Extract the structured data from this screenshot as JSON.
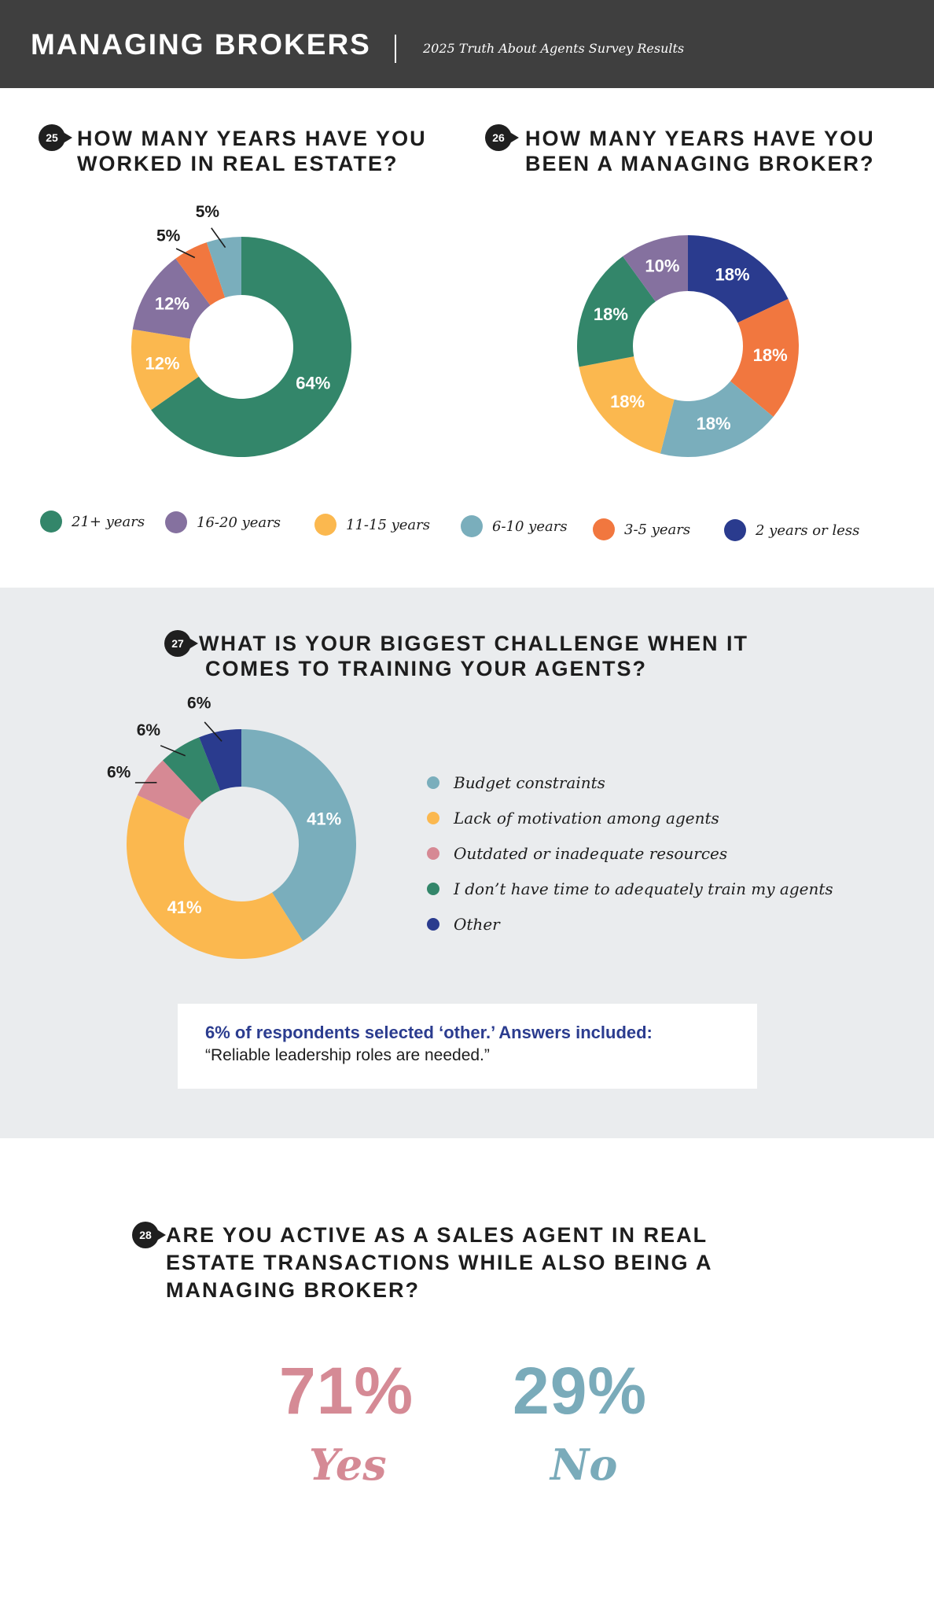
{
  "header": {
    "title": "MANAGING BROKERS",
    "subtitle": "2025 Truth About Agents Survey Results"
  },
  "colors": {
    "green": "#33866a",
    "purple": "#85719f",
    "yellow": "#fbb84f",
    "teal": "#7aaebc",
    "orange": "#f1773f",
    "navy": "#2a3b8e",
    "pink": "#d68994",
    "yes": "#d58a95",
    "no": "#7aabba"
  },
  "q25": {
    "number": "25",
    "title_line1": "HOW MANY YEARS HAVE YOU",
    "title_line2": "WORKED IN REAL ESTATE?"
  },
  "q26": {
    "number": "26",
    "title_line1": "HOW MANY YEARS HAVE YOU",
    "title_line2": "BEEN A MANAGING BROKER?"
  },
  "legend_years": [
    {
      "label": "21+ years",
      "color": "#33866a"
    },
    {
      "label": "16-20 years",
      "color": "#85719f"
    },
    {
      "label": "11-15 years",
      "color": "#fbb84f"
    },
    {
      "label": "6-10 years",
      "color": "#7aaebc"
    },
    {
      "label": "3-5 years",
      "color": "#f1773f"
    },
    {
      "label": "2 years or less",
      "color": "#2a3b8e"
    }
  ],
  "q27": {
    "number": "27",
    "title_line1": "WHAT IS YOUR BIGGEST CHALLENGE WHEN IT",
    "title_line2": "COMES TO TRAINING YOUR AGENTS?",
    "legend": [
      {
        "label": "Budget constraints",
        "color": "#7aaebc"
      },
      {
        "label": "Lack of motivation among agents",
        "color": "#fbb84f"
      },
      {
        "label": "Outdated or inadequate resources",
        "color": "#d68994"
      },
      {
        "label": "I don’t have time to adequately train my agents",
        "color": "#33866a"
      },
      {
        "label": "Other",
        "color": "#2a3b8e"
      }
    ],
    "note_title": "6% of respondents selected ‘other.’ Answers included:",
    "note_quote": "“Reliable leadership roles are needed.”"
  },
  "q28": {
    "number": "28",
    "title_line1": "ARE YOU ACTIVE AS A SALES AGENT IN REAL",
    "title_line2": "ESTATE TRANSACTIONS WHILE ALSO BEING A",
    "title_line3": "MANAGING BROKER?",
    "yes_pct": "71%",
    "yes_label": "Yes",
    "no_pct": "29%",
    "no_label": "No"
  },
  "chart_data": [
    {
      "type": "pie",
      "title": "HOW MANY YEARS HAVE YOU WORKED IN REAL ESTATE?",
      "categories": [
        "21+ years",
        "11-15 years",
        "16-20 years",
        "3-5 years",
        "6-10 years"
      ],
      "values": [
        64,
        12,
        12,
        5,
        5
      ],
      "labels": [
        "64%",
        "12%",
        "12%",
        "5%",
        "5%"
      ],
      "colors": [
        "#33866a",
        "#fbb84f",
        "#85719f",
        "#f1773f",
        "#7aaebc"
      ],
      "label_position": [
        "inside",
        "inside",
        "inside",
        "outside",
        "outside"
      ]
    },
    {
      "type": "pie",
      "title": "HOW MANY YEARS HAVE YOU BEEN A MANAGING BROKER?",
      "categories": [
        "2 years or less",
        "3-5 years",
        "6-10 years",
        "11-15 years",
        "21+ years",
        "16-20 years"
      ],
      "values": [
        18,
        18,
        18,
        18,
        18,
        10
      ],
      "labels": [
        "18%",
        "18%",
        "18%",
        "18%",
        "18%",
        "10%"
      ],
      "colors": [
        "#2a3b8e",
        "#f1773f",
        "#7aaebc",
        "#fbb84f",
        "#33866a",
        "#85719f"
      ],
      "label_position": [
        "inside",
        "inside",
        "inside",
        "inside",
        "inside",
        "inside"
      ]
    },
    {
      "type": "pie",
      "title": "WHAT IS YOUR BIGGEST CHALLENGE WHEN IT COMES TO TRAINING YOUR AGENTS?",
      "categories": [
        "Budget constraints",
        "Lack of motivation among agents",
        "Outdated or inadequate resources",
        "I don’t have time to adequately train my agents",
        "Other"
      ],
      "values": [
        41,
        41,
        6,
        6,
        6
      ],
      "labels": [
        "41%",
        "41%",
        "6%",
        "6%",
        "6%"
      ],
      "colors": [
        "#7aaebc",
        "#fbb84f",
        "#d68994",
        "#33866a",
        "#2a3b8e"
      ],
      "label_position": [
        "inside",
        "inside",
        "outside",
        "outside",
        "outside"
      ]
    }
  ]
}
